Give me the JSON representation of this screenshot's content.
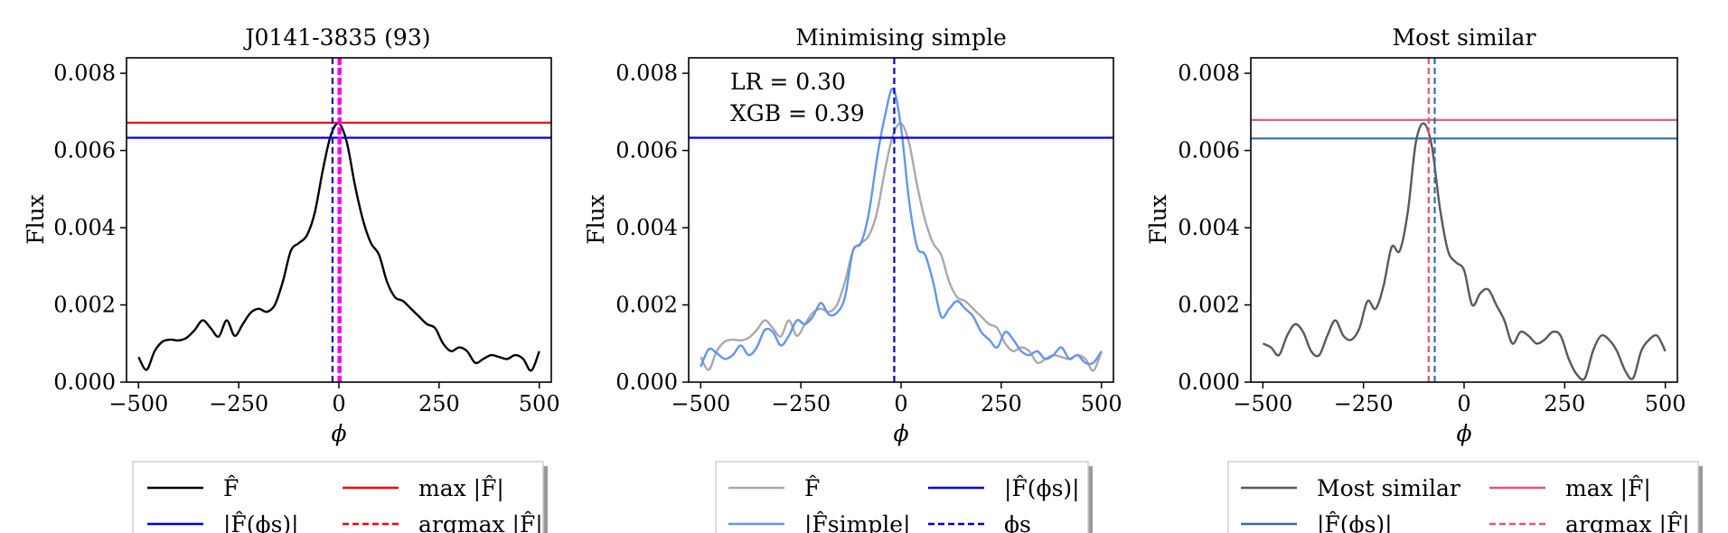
{
  "chart_data": [
    {
      "type": "line",
      "title": "J0141-3835 (93)",
      "xlabel": "ϕ",
      "ylabel": "Flux",
      "xlim": [
        -530,
        530
      ],
      "ylim": [
        0,
        0.0084
      ],
      "xticks": [
        -500,
        -250,
        0,
        250,
        500
      ],
      "xtick_labels": [
        "−500",
        "−250",
        "0",
        "250",
        "500"
      ],
      "yticks": [
        0,
        0.002,
        0.004,
        0.006,
        0.008
      ],
      "ytick_labels": [
        "0.000",
        "0.002",
        "0.004",
        "0.006",
        "0.008"
      ],
      "series": [
        {
          "name": "F̂",
          "color": "#000000",
          "style": "solid",
          "x": [
            -500,
            -480,
            -460,
            -440,
            -420,
            -400,
            -380,
            -360,
            -340,
            -320,
            -300,
            -280,
            -260,
            -240,
            -220,
            -200,
            -180,
            -160,
            -140,
            -120,
            -100,
            -80,
            -60,
            -40,
            -20,
            0,
            20,
            40,
            60,
            80,
            100,
            120,
            140,
            160,
            180,
            200,
            220,
            240,
            260,
            280,
            300,
            320,
            340,
            360,
            380,
            400,
            420,
            440,
            460,
            480,
            500
          ],
          "y": [
            0.00065,
            0.00032,
            0.0008,
            0.00105,
            0.0011,
            0.00108,
            0.00115,
            0.00135,
            0.0016,
            0.0014,
            0.00118,
            0.0016,
            0.0012,
            0.0015,
            0.0018,
            0.0019,
            0.00182,
            0.002,
            0.0026,
            0.0034,
            0.0036,
            0.0038,
            0.0044,
            0.0055,
            0.0064,
            0.0067,
            0.0062,
            0.0051,
            0.0042,
            0.0036,
            0.0033,
            0.0026,
            0.0022,
            0.0021,
            0.0019,
            0.0017,
            0.0015,
            0.0014,
            0.001,
            0.0008,
            0.0009,
            0.0008,
            0.0005,
            0.0006,
            0.0007,
            0.00065,
            0.0006,
            0.0007,
            0.0006,
            0.0003,
            0.0008
          ]
        },
        {
          "name": "|F̂(ϕs)|",
          "color": "#0000d0",
          "style": "hline",
          "y": [
            0.00633
          ]
        },
        {
          "name": "max |F̂|",
          "color": "#ff0000",
          "style": "hline",
          "y": [
            0.00672
          ]
        },
        {
          "name": "argmax |F̂|",
          "color": "#ff0000",
          "style": "vline-dashed",
          "x": [
            4
          ]
        },
        {
          "name": "ϕs",
          "color": "#0000d0",
          "style": "vline-dashed",
          "x": [
            -16
          ]
        }
      ],
      "extra_lines": [
        {
          "color": "#ff00ff",
          "style": "vline-thick",
          "x": [
            1
          ]
        }
      ],
      "legend": {
        "entries": [
          {
            "label": "F̂",
            "color": "#000000",
            "dash": "solid"
          },
          {
            "label": "max |F̂|",
            "color": "#ff0000",
            "dash": "solid"
          },
          {
            "label": "|F̂(ϕs)|",
            "color": "#0000d0",
            "dash": "solid"
          },
          {
            "label": "argmax |F̂|",
            "color": "#ff0000",
            "dash": "dashed"
          }
        ],
        "position": "below"
      },
      "grid": false
    },
    {
      "type": "line",
      "title": "Minimising simple",
      "xlabel": "ϕ",
      "ylabel": "Flux",
      "xlim": [
        -530,
        530
      ],
      "ylim": [
        0,
        0.0084
      ],
      "xticks": [
        -500,
        -250,
        0,
        250,
        500
      ],
      "xtick_labels": [
        "−500",
        "−250",
        "0",
        "250",
        "500"
      ],
      "yticks": [
        0,
        0.002,
        0.004,
        0.006,
        0.008
      ],
      "ytick_labels": [
        "0.000",
        "0.002",
        "0.004",
        "0.006",
        "0.008"
      ],
      "annotations": [
        "LR = 0.30",
        "XGB = 0.39"
      ],
      "series": [
        {
          "name": "F̂",
          "color": "#a9a9a9",
          "style": "solid",
          "x": [
            -500,
            -480,
            -460,
            -440,
            -420,
            -400,
            -380,
            -360,
            -340,
            -320,
            -300,
            -280,
            -260,
            -240,
            -220,
            -200,
            -180,
            -160,
            -140,
            -120,
            -100,
            -80,
            -60,
            -40,
            -20,
            0,
            20,
            40,
            60,
            80,
            100,
            120,
            140,
            160,
            180,
            200,
            220,
            240,
            260,
            280,
            300,
            320,
            340,
            360,
            380,
            400,
            420,
            440,
            460,
            480,
            500
          ],
          "y": [
            0.00065,
            0.00032,
            0.0008,
            0.00105,
            0.0011,
            0.00108,
            0.00115,
            0.00135,
            0.0016,
            0.0014,
            0.00118,
            0.0016,
            0.0012,
            0.0015,
            0.0018,
            0.0019,
            0.00182,
            0.002,
            0.0026,
            0.0034,
            0.0036,
            0.0038,
            0.0044,
            0.0055,
            0.0064,
            0.0067,
            0.0062,
            0.0051,
            0.0042,
            0.0036,
            0.0033,
            0.0026,
            0.0022,
            0.0021,
            0.0019,
            0.0017,
            0.0015,
            0.0014,
            0.001,
            0.0008,
            0.0009,
            0.0008,
            0.0005,
            0.0006,
            0.0007,
            0.00065,
            0.0006,
            0.0007,
            0.0006,
            0.0003,
            0.0008
          ]
        },
        {
          "name": "|F̂simple|",
          "color": "#6495ed",
          "style": "solid",
          "x": [
            -500,
            -480,
            -460,
            -440,
            -420,
            -400,
            -380,
            -360,
            -340,
            -320,
            -300,
            -280,
            -260,
            -240,
            -220,
            -200,
            -180,
            -160,
            -140,
            -120,
            -100,
            -80,
            -60,
            -40,
            -20,
            0,
            20,
            40,
            60,
            80,
            100,
            120,
            140,
            160,
            180,
            200,
            220,
            240,
            260,
            280,
            300,
            320,
            340,
            360,
            380,
            400,
            420,
            440,
            460,
            480,
            500
          ],
          "y": [
            0.0004,
            0.00085,
            0.00075,
            0.0006,
            0.0007,
            0.00095,
            0.0007,
            0.0009,
            0.00135,
            0.0013,
            0.00095,
            0.0012,
            0.0016,
            0.0015,
            0.0017,
            0.00205,
            0.00175,
            0.0018,
            0.0022,
            0.0034,
            0.0036,
            0.0044,
            0.0058,
            0.0069,
            0.0076,
            0.0066,
            0.0047,
            0.0035,
            0.0033,
            0.0026,
            0.0017,
            0.0019,
            0.0021,
            0.0019,
            0.0017,
            0.0013,
            0.0011,
            0.0009,
            0.0013,
            0.0011,
            0.0008,
            0.0007,
            0.0008,
            0.0006,
            0.0007,
            0.0009,
            0.0006,
            0.0007,
            0.0005,
            0.0005,
            0.0008
          ]
        },
        {
          "name": "|F̂(ϕs)|",
          "color": "#0000d0",
          "style": "hline",
          "y": [
            0.00633
          ]
        },
        {
          "name": "ϕs",
          "color": "#0000d0",
          "style": "vline-dashed",
          "x": [
            -17
          ]
        }
      ],
      "legend": {
        "entries": [
          {
            "label": "F̂",
            "color": "#a9a9a9",
            "dash": "solid"
          },
          {
            "label": "|F̂(ϕs)|",
            "color": "#0000d0",
            "dash": "solid"
          },
          {
            "label": "|F̂simple|",
            "color": "#6495ed",
            "dash": "solid"
          },
          {
            "label": "ϕs",
            "color": "#0000d0",
            "dash": "dashed"
          }
        ],
        "position": "below"
      },
      "grid": false
    },
    {
      "type": "line",
      "title": "Most similar",
      "xlabel": "ϕ",
      "ylabel": "Flux",
      "xlim": [
        -530,
        530
      ],
      "ylim": [
        0,
        0.0084
      ],
      "xticks": [
        -500,
        -250,
        0,
        250,
        500
      ],
      "xtick_labels": [
        "−500",
        "−250",
        "0",
        "250",
        "500"
      ],
      "yticks": [
        0,
        0.002,
        0.004,
        0.006,
        0.008
      ],
      "ytick_labels": [
        "0.000",
        "0.002",
        "0.004",
        "0.006",
        "0.008"
      ],
      "series": [
        {
          "name": "Most similar",
          "color": "#595959",
          "style": "solid",
          "x": [
            -500,
            -480,
            -460,
            -440,
            -420,
            -400,
            -380,
            -360,
            -340,
            -320,
            -300,
            -280,
            -260,
            -240,
            -220,
            -200,
            -180,
            -160,
            -140,
            -120,
            -100,
            -80,
            -60,
            -40,
            -20,
            0,
            20,
            40,
            60,
            80,
            100,
            120,
            140,
            160,
            180,
            200,
            220,
            240,
            260,
            280,
            300,
            320,
            340,
            360,
            380,
            400,
            420,
            440,
            460,
            480,
            500
          ],
          "y": [
            0.001,
            0.0009,
            0.0007,
            0.0012,
            0.0015,
            0.0013,
            0.0008,
            0.0007,
            0.0012,
            0.0016,
            0.0012,
            0.0011,
            0.0014,
            0.0021,
            0.0019,
            0.0025,
            0.0035,
            0.0034,
            0.0044,
            0.0062,
            0.0067,
            0.0061,
            0.0045,
            0.0034,
            0.0031,
            0.0029,
            0.002,
            0.0023,
            0.0024,
            0.002,
            0.0016,
            0.001,
            0.0013,
            0.0012,
            0.001,
            0.0011,
            0.0013,
            0.0012,
            0.0006,
            0.0002,
            0.0001,
            0.0008,
            0.0012,
            0.0011,
            0.0008,
            0.0003,
            0.0001,
            0.0008,
            0.0011,
            0.0012,
            0.0008
          ]
        },
        {
          "name": "|F̂(ϕs)|",
          "color": "#2e6fa7",
          "style": "hline",
          "y": [
            0.00631
          ]
        },
        {
          "name": "max |F̂|",
          "color": "#e0547a",
          "style": "hline",
          "y": [
            0.00679
          ]
        },
        {
          "name": "argmax |F̂|",
          "color": "#e0547a",
          "style": "vline-dashed",
          "x": [
            -88
          ]
        },
        {
          "name": "ϕs",
          "color": "#2e6fa7",
          "style": "vline-dashed",
          "x": [
            -73
          ]
        }
      ],
      "legend": {
        "entries": [
          {
            "label": "Most similar",
            "color": "#595959",
            "dash": "solid"
          },
          {
            "label": "max |F̂|",
            "color": "#e0547a",
            "dash": "solid"
          },
          {
            "label": "|F̂(ϕs)|",
            "color": "#2e6fa7",
            "dash": "solid"
          },
          {
            "label": "argmax |F̂|",
            "color": "#e0547a",
            "dash": "dashed"
          }
        ],
        "position": "below"
      },
      "grid": false
    }
  ]
}
